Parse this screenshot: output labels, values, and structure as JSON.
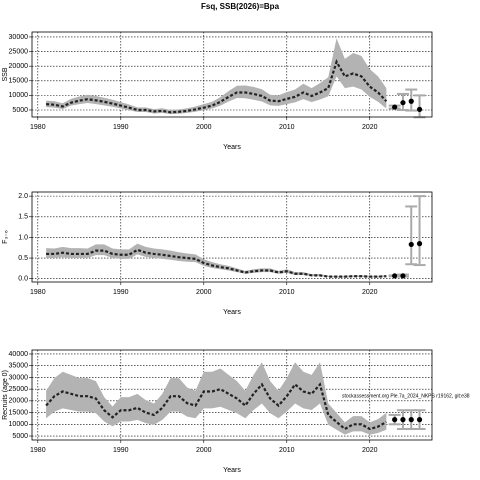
{
  "title": "Fsq, SSB(2026)=Bpa",
  "chart_data": [
    {
      "type": "line",
      "ylabel": "SSB",
      "xlabel": "Years",
      "x": [
        1981,
        1982,
        1983,
        1984,
        1985,
        1986,
        1987,
        1988,
        1989,
        1990,
        1991,
        1992,
        1993,
        1994,
        1995,
        1996,
        1997,
        1998,
        1999,
        2000,
        2001,
        2002,
        2003,
        2004,
        2005,
        2006,
        2007,
        2008,
        2009,
        2010,
        2011,
        2012,
        2013,
        2014,
        2015,
        2016,
        2017,
        2018,
        2019,
        2020,
        2021,
        2022
      ],
      "values": [
        7000,
        6800,
        6200,
        7500,
        8200,
        8700,
        8300,
        7800,
        7200,
        6500,
        5800,
        5000,
        5000,
        4500,
        4700,
        4200,
        4400,
        4700,
        5200,
        5800,
        6500,
        7800,
        9500,
        11000,
        11000,
        10500,
        9800,
        8200,
        8000,
        8800,
        9500,
        11000,
        9800,
        11000,
        12500,
        21500,
        16500,
        17500,
        16500,
        13000,
        11000,
        8000
      ],
      "lower": [
        6000,
        5800,
        5300,
        6500,
        7000,
        7400,
        7000,
        6600,
        6100,
        5500,
        4900,
        4300,
        4300,
        3800,
        4000,
        3600,
        3700,
        4000,
        4400,
        4900,
        5500,
        6500,
        7900,
        9100,
        9000,
        8500,
        7900,
        6600,
        6400,
        7000,
        7600,
        8700,
        7700,
        8600,
        9700,
        16500,
        12500,
        13000,
        12000,
        9500,
        7800,
        5500
      ],
      "upper": [
        8200,
        8000,
        7300,
        8800,
        9600,
        10200,
        9800,
        9200,
        8500,
        7700,
        6900,
        5900,
        5900,
        5300,
        5600,
        5000,
        5200,
        5600,
        6200,
        7000,
        7800,
        9400,
        11500,
        13300,
        13400,
        12900,
        12100,
        10200,
        10000,
        11100,
        12000,
        14000,
        12500,
        14200,
        16200,
        29500,
        22500,
        24500,
        23500,
        19000,
        16500,
        12500
      ],
      "proj_x": [
        2023,
        2024,
        2025,
        2026
      ],
      "proj_values": [
        6000,
        7500,
        8000,
        5200
      ],
      "proj_lower": [
        5500,
        5000,
        4800,
        2500
      ],
      "proj_upper": [
        6500,
        10500,
        12000,
        10000
      ],
      "xlim": [
        1979.3,
        2027.5
      ],
      "ylim": [
        2600,
        31700
      ],
      "xticks": [
        1980,
        1990,
        2000,
        2010,
        2020
      ],
      "yticks": [
        5000,
        10000,
        15000,
        20000,
        25000,
        30000
      ],
      "grid": true
    },
    {
      "type": "line",
      "ylabel": "F₃₋₆",
      "xlabel": "Years",
      "x": [
        1981,
        1982,
        1983,
        1984,
        1985,
        1986,
        1987,
        1988,
        1989,
        1990,
        1991,
        1992,
        1993,
        1994,
        1995,
        1996,
        1997,
        1998,
        1999,
        2000,
        2001,
        2002,
        2003,
        2004,
        2005,
        2006,
        2007,
        2008,
        2009,
        2010,
        2011,
        2012,
        2013,
        2014,
        2015,
        2016,
        2017,
        2018,
        2019,
        2020,
        2021,
        2022
      ],
      "values": [
        0.6,
        0.6,
        0.63,
        0.6,
        0.6,
        0.6,
        0.68,
        0.68,
        0.6,
        0.58,
        0.58,
        0.7,
        0.63,
        0.6,
        0.58,
        0.55,
        0.52,
        0.5,
        0.48,
        0.38,
        0.32,
        0.28,
        0.25,
        0.2,
        0.15,
        0.18,
        0.2,
        0.2,
        0.15,
        0.18,
        0.12,
        0.12,
        0.08,
        0.08,
        0.05,
        0.05,
        0.05,
        0.06,
        0.06,
        0.05,
        0.05,
        0.06
      ],
      "lower": [
        0.5,
        0.5,
        0.52,
        0.5,
        0.5,
        0.5,
        0.57,
        0.57,
        0.5,
        0.48,
        0.48,
        0.59,
        0.53,
        0.5,
        0.48,
        0.46,
        0.43,
        0.41,
        0.4,
        0.31,
        0.26,
        0.23,
        0.2,
        0.16,
        0.12,
        0.14,
        0.16,
        0.16,
        0.12,
        0.14,
        0.09,
        0.09,
        0.06,
        0.06,
        0.04,
        0.03,
        0.03,
        0.04,
        0.04,
        0.03,
        0.03,
        0.04
      ],
      "upper": [
        0.74,
        0.73,
        0.77,
        0.74,
        0.74,
        0.73,
        0.83,
        0.83,
        0.73,
        0.71,
        0.71,
        0.85,
        0.77,
        0.73,
        0.71,
        0.68,
        0.64,
        0.61,
        0.59,
        0.47,
        0.4,
        0.35,
        0.31,
        0.25,
        0.19,
        0.23,
        0.25,
        0.25,
        0.19,
        0.23,
        0.16,
        0.16,
        0.11,
        0.11,
        0.07,
        0.07,
        0.07,
        0.08,
        0.08,
        0.07,
        0.07,
        0.09
      ],
      "proj_x": [
        2023,
        2024,
        2025,
        2026
      ],
      "proj_values": [
        0.07,
        0.07,
        0.83,
        0.85
      ],
      "proj_lower": [
        0.06,
        0.05,
        0.35,
        0.33
      ],
      "proj_upper": [
        0.08,
        0.1,
        1.75,
        2.0
      ],
      "xlim": [
        1979.3,
        2027.5
      ],
      "ylim": [
        -0.08,
        2.1
      ],
      "xticks": [
        1980,
        1990,
        2000,
        2010,
        2020
      ],
      "yticks": [
        {
          "value": 0,
          "label": "0.0"
        },
        {
          "value": 0.5,
          "label": "0.5"
        },
        {
          "value": 1,
          "label": "1.0"
        },
        {
          "value": 1.5,
          "label": "1.5"
        },
        {
          "value": 2,
          "label": "2.0"
        }
      ],
      "grid": true
    },
    {
      "type": "line",
      "ylabel": "Recruits (age 0)",
      "xlabel": "Years",
      "annotation": "stockassessment.org Ple.7a_2024_NKPS r19162, git:e38",
      "x": [
        1981,
        1982,
        1983,
        1984,
        1985,
        1986,
        1987,
        1988,
        1989,
        1990,
        1991,
        1992,
        1993,
        1994,
        1995,
        1996,
        1997,
        1998,
        1999,
        2000,
        2001,
        2002,
        2003,
        2004,
        2005,
        2006,
        2007,
        2008,
        2009,
        2010,
        2011,
        2012,
        2013,
        2014,
        2015,
        2016,
        2017,
        2018,
        2019,
        2020,
        2021,
        2022
      ],
      "values": [
        18000,
        22000,
        24000,
        23000,
        22000,
        22000,
        21000,
        16000,
        13000,
        16000,
        16000,
        17000,
        15000,
        14000,
        17000,
        22000,
        22000,
        19000,
        18000,
        24000,
        24000,
        25000,
        23000,
        21000,
        18000,
        23000,
        27000,
        21000,
        18000,
        22000,
        27000,
        24000,
        23000,
        27000,
        14000,
        11000,
        8000,
        10000,
        10000,
        8000,
        9000,
        11000
      ],
      "lower": [
        12600,
        15400,
        16800,
        16100,
        15400,
        15400,
        14700,
        11200,
        9100,
        11200,
        11200,
        11900,
        10500,
        9800,
        11900,
        15400,
        15400,
        13300,
        12600,
        16800,
        16800,
        17500,
        16100,
        14700,
        12600,
        16100,
        18900,
        14700,
        12600,
        15400,
        18900,
        16800,
        16100,
        18900,
        9800,
        7700,
        5600,
        7000,
        7000,
        5600,
        6300,
        7700
      ],
      "upper": [
        24300,
        29700,
        32400,
        31100,
        29700,
        29700,
        28400,
        21600,
        17600,
        21600,
        21600,
        23000,
        20300,
        18900,
        23000,
        29700,
        29700,
        25700,
        24300,
        32400,
        32400,
        33800,
        31100,
        28400,
        24300,
        31100,
        36500,
        28400,
        24300,
        29700,
        36500,
        32400,
        31100,
        36500,
        18900,
        14900,
        10800,
        13500,
        13500,
        10800,
        12200,
        14900
      ],
      "proj_x": [
        2023,
        2024,
        2025,
        2026
      ],
      "proj_values": [
        12000,
        12000,
        12000,
        12000
      ],
      "proj_lower": [
        10000,
        8000,
        8000,
        8000
      ],
      "proj_upper": [
        14000,
        16000,
        16000,
        16000
      ],
      "xlim": [
        1979.3,
        2027.5
      ],
      "ylim": [
        3300,
        41700
      ],
      "xticks": [
        1980,
        1990,
        2000,
        2010,
        2020
      ],
      "yticks": [
        5000,
        10000,
        15000,
        20000,
        25000,
        30000,
        35000,
        40000
      ],
      "grid": true
    }
  ]
}
